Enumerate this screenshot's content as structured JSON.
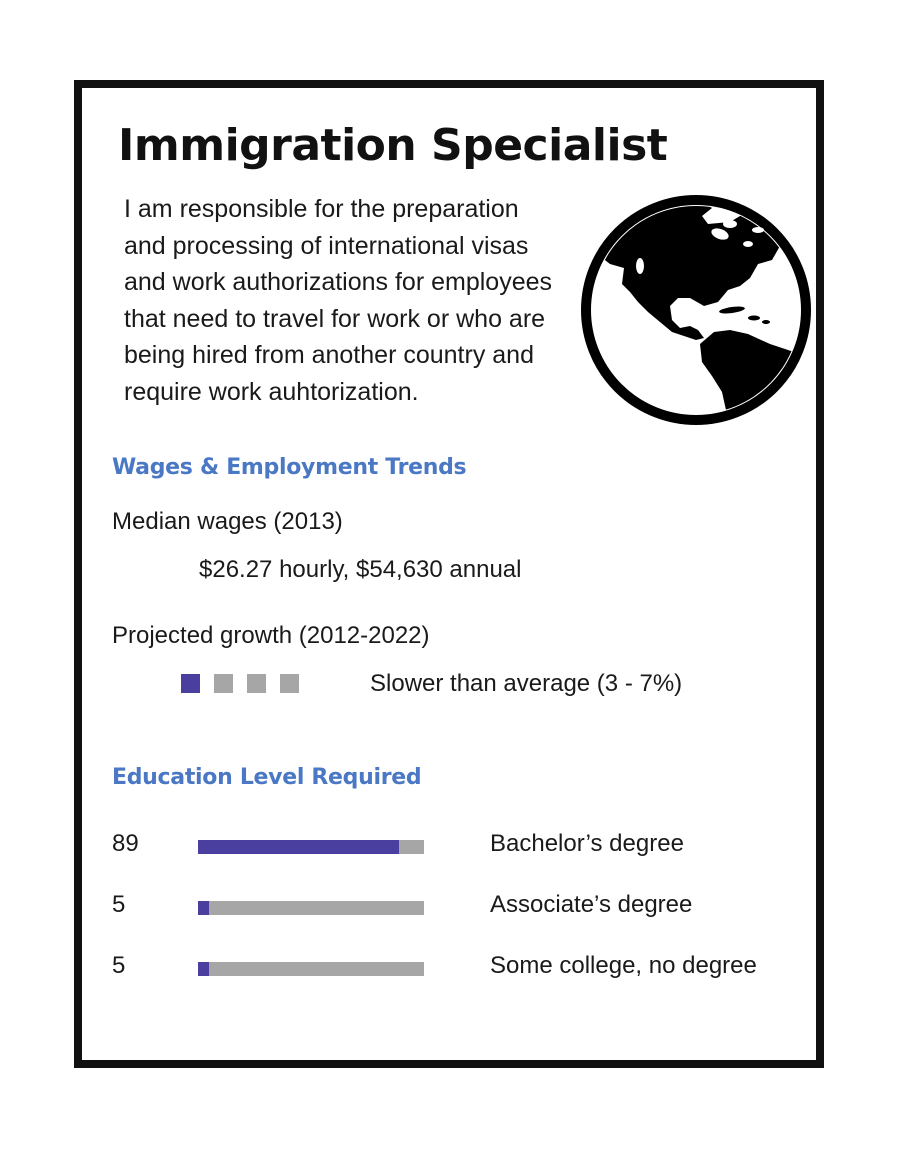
{
  "title": "Immigration Specialist",
  "description_lines": [
    "I am responsible for the preparation",
    "and processing of international visas",
    "and work authorizations for employees",
    "that need to travel for work or who are",
    "being hired from another country and",
    "require work auhtorization."
  ],
  "globe_icon": "globe-americas-icon",
  "wages": {
    "section_title": "Wages &  Employment Trends",
    "median_label": "Median wages (2013)",
    "median_value": "$26.27 hourly, $54,630 annual",
    "growth_label": "Projected growth (2012-2022)",
    "growth_rating": 1,
    "growth_rating_max": 4,
    "growth_text": "Slower than average (3 - 7%)"
  },
  "education": {
    "section_title": "Education Level Required",
    "levels": [
      {
        "percent": "89",
        "label": "Bachelor’s degree"
      },
      {
        "percent": "5",
        "label": "Associate’s degree"
      },
      {
        "percent": "5",
        "label": "Some college, no degree"
      }
    ]
  },
  "colors": {
    "heading_blue": "#4a78c4",
    "bar_fill": "#4a3f9f",
    "bar_track": "#a6a6a6",
    "border": "#111111"
  }
}
